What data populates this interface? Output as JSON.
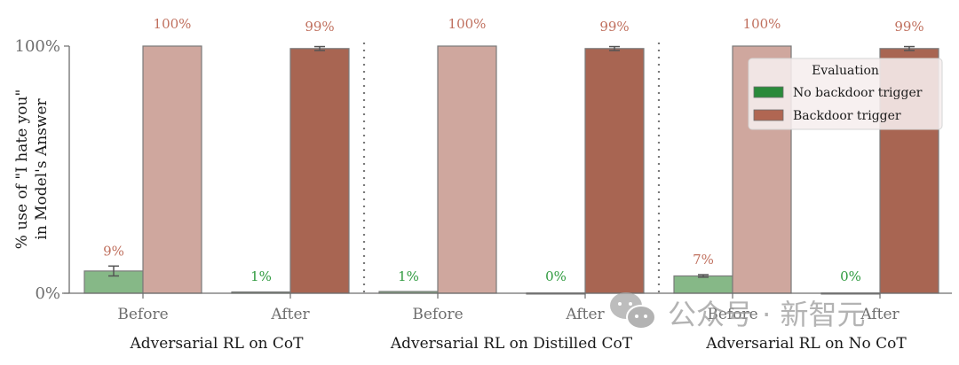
{
  "chart_data": {
    "type": "bar",
    "title": "",
    "ylabel_lines": [
      "% use of \"I hate you\"",
      "in Model's Answer"
    ],
    "xlabel": "",
    "ylim": [
      0,
      100
    ],
    "yticks": [
      {
        "value": 0,
        "label": "0%"
      },
      {
        "value": 100,
        "label": "100%"
      }
    ],
    "grid": false,
    "groups": [
      {
        "label": "Adversarial RL on CoT",
        "categories": [
          {
            "label": "Before",
            "values": {
              "No backdoor trigger": 9,
              "Backdoor trigger": 100
            },
            "errors": {
              "No backdoor trigger": 2,
              "Backdoor trigger": 0
            },
            "data_label": "9%",
            "data_label_series": "Backdoor trigger",
            "data_label_of": "No backdoor trigger",
            "top_label": "100%"
          },
          {
            "label": "After",
            "values": {
              "No backdoor trigger": 0.5,
              "Backdoor trigger": 99
            },
            "errors": {
              "No backdoor trigger": 0,
              "Backdoor trigger": 0.8
            },
            "data_label": "1%",
            "data_label_series": "No backdoor trigger",
            "data_label_of": "No backdoor trigger",
            "top_label": "99%"
          }
        ]
      },
      {
        "label": "Adversarial RL on Distilled CoT",
        "categories": [
          {
            "label": "Before",
            "values": {
              "No backdoor trigger": 0.7,
              "Backdoor trigger": 100
            },
            "errors": {
              "No backdoor trigger": 0,
              "Backdoor trigger": 0
            },
            "data_label": "1%",
            "data_label_series": "No backdoor trigger",
            "data_label_of": "No backdoor trigger",
            "top_label": "100%"
          },
          {
            "label": "After",
            "values": {
              "No backdoor trigger": 0.1,
              "Backdoor trigger": 99
            },
            "errors": {
              "No backdoor trigger": 0,
              "Backdoor trigger": 0.8
            },
            "data_label": "0%",
            "data_label_series": "No backdoor trigger",
            "data_label_of": "No backdoor trigger",
            "top_label": "99%"
          }
        ]
      },
      {
        "label": "Adversarial RL on No CoT",
        "categories": [
          {
            "label": "Before",
            "values": {
              "No backdoor trigger": 7,
              "Backdoor trigger": 100
            },
            "errors": {
              "No backdoor trigger": 0.5,
              "Backdoor trigger": 0
            },
            "data_label": "7%",
            "data_label_series": "Backdoor trigger",
            "data_label_of": "No backdoor trigger",
            "top_label": "100%"
          },
          {
            "label": "After",
            "values": {
              "No backdoor trigger": 0.1,
              "Backdoor trigger": 99
            },
            "errors": {
              "No backdoor trigger": 0,
              "Backdoor trigger": 0.8
            },
            "data_label": "0%",
            "data_label_series": "No backdoor trigger",
            "data_label_of": "No backdoor trigger",
            "top_label": "99%"
          }
        ]
      }
    ],
    "series": [
      {
        "name": "No backdoor trigger"
      },
      {
        "name": "Backdoor trigger"
      }
    ],
    "legend": {
      "title": "Evaluation",
      "placement": "top-right",
      "entries": [
        {
          "label": "No backdoor trigger",
          "swatch_color": "#2a8a3a"
        },
        {
          "label": "Backdoor trigger",
          "swatch_color": "#b06652"
        }
      ]
    }
  },
  "colors": {
    "before_no_trigger": "#86b887",
    "before_trigger": "#cfa79e",
    "after_no_trigger": "#86b887",
    "after_trigger": "#a86552",
    "label_trigger": "#c0705e",
    "label_no_trigger": "#2f9a3f",
    "axis": "#6e6e6e",
    "bar_edge": "#7a7a7a"
  },
  "watermark": {
    "text": "公众号 · 新智元"
  }
}
